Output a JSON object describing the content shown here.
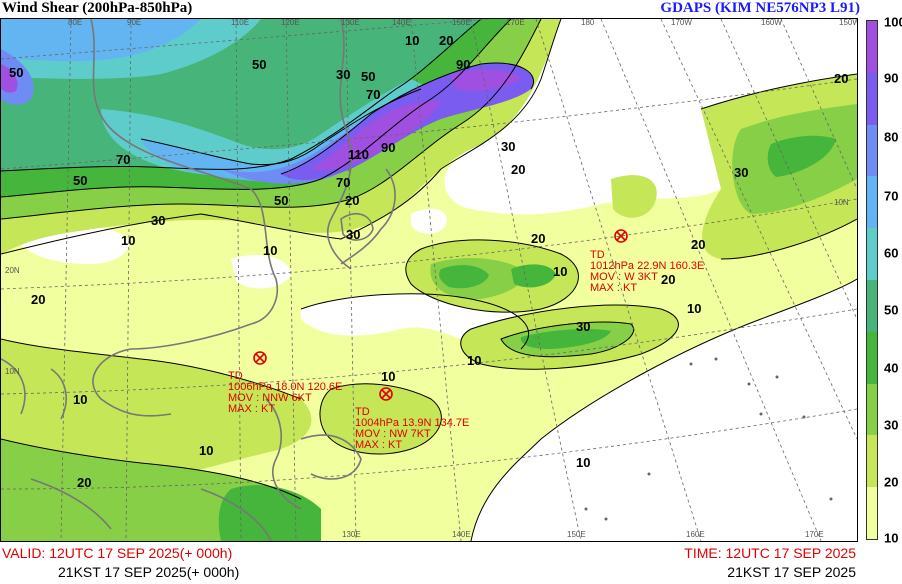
{
  "header": {
    "title": "Wind Shear (200hPa-850hPa)",
    "model": "GDAPS (KIM NE576NP3 L91)"
  },
  "colorbar": {
    "labels": [
      "100",
      "90",
      "80",
      "70",
      "60",
      "50",
      "40",
      "30",
      "20",
      "10"
    ],
    "colors": [
      "#a050e0",
      "#7a5cf0",
      "#6f8cf5",
      "#63b5f2",
      "#5fcccc",
      "#47b57a",
      "#46b53c",
      "#87cf47",
      "#c5e657",
      "#f2ff9e"
    ]
  },
  "map": {
    "contour_labels": [
      "50",
      "50",
      "70",
      "50",
      "30",
      "10",
      "20",
      "30",
      "50",
      "70",
      "90",
      "110",
      "90",
      "70",
      "50",
      "30",
      "20",
      "10",
      "20",
      "20",
      "30",
      "10",
      "20",
      "30",
      "20",
      "10",
      "20",
      "10",
      "10",
      "10",
      "10",
      "20",
      "10",
      "30",
      "20",
      "10"
    ],
    "lat_labels": [
      "20N",
      "10N",
      "10N"
    ],
    "lon_labels": [
      "80E",
      "90E",
      "110E",
      "120E",
      "130E",
      "140E",
      "150E",
      "170E",
      "180",
      "170W",
      "160W",
      "150W",
      "130E",
      "140E",
      "150E",
      "160E",
      "170E"
    ]
  },
  "storms": [
    {
      "type": "TD",
      "line1": "1006hPa 18.0N 120.6E",
      "line2": "MOV : NNW 6KT",
      "line3": "MAX :   KT"
    },
    {
      "type": "TD",
      "line1": "1004hPa 13.9N 134.7E",
      "line2": "MOV : NW 7KT",
      "line3": "MAX :   KT"
    },
    {
      "type": "TD",
      "line1": "1012hPa 22.9N 160.3E",
      "line2": "MOV : W 3KT",
      "line3": "MAX :   KT"
    }
  ],
  "footer": {
    "valid": "VALID: 12UTC 17 SEP 2025(+ 000h)",
    "valid_kst": "21KST 17 SEP 2025(+ 000h)",
    "time": "TIME: 12UTC 17 SEP 2025",
    "time_kst": "21KST 17 SEP 2025"
  }
}
